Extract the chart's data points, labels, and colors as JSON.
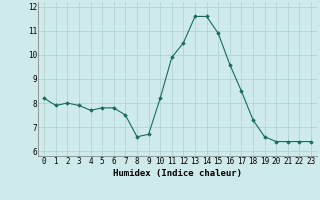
{
  "x": [
    0,
    1,
    2,
    3,
    4,
    5,
    6,
    7,
    8,
    9,
    10,
    11,
    12,
    13,
    14,
    15,
    16,
    17,
    18,
    19,
    20,
    21,
    22,
    23
  ],
  "y": [
    8.2,
    7.9,
    8.0,
    7.9,
    7.7,
    7.8,
    7.8,
    7.5,
    6.6,
    6.7,
    8.2,
    9.9,
    10.5,
    11.6,
    11.6,
    10.9,
    9.6,
    8.5,
    7.3,
    6.6,
    6.4,
    6.4,
    6.4,
    6.4
  ],
  "xlabel": "Humidex (Indice chaleur)",
  "xlim": [
    -0.5,
    23.5
  ],
  "ylim": [
    5.8,
    12.2
  ],
  "yticks": [
    6,
    7,
    8,
    9,
    10,
    11,
    12
  ],
  "xticks": [
    0,
    1,
    2,
    3,
    4,
    5,
    6,
    7,
    8,
    9,
    10,
    11,
    12,
    13,
    14,
    15,
    16,
    17,
    18,
    19,
    20,
    21,
    22,
    23
  ],
  "line_color": "#1a6b5a",
  "marker_color": "#1a6b5a",
  "bg_color": "#ceeaea",
  "grid_color": "#aed0d0",
  "label_fontsize": 6.5,
  "tick_fontsize": 5.5
}
